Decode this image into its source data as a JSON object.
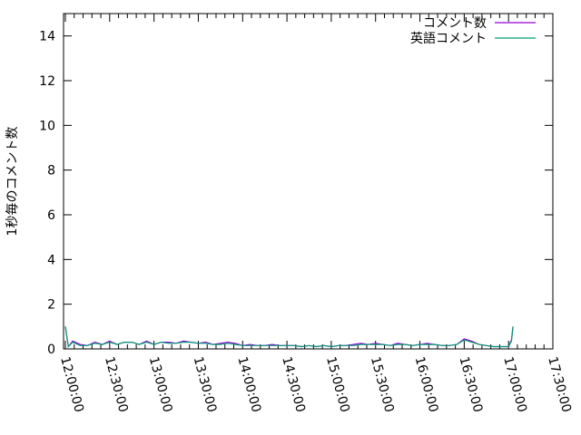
{
  "chart_data": {
    "type": "line",
    "title": "",
    "xlabel": "",
    "ylabel": "1秒毎のコメント数",
    "ylim": [
      0,
      15
    ],
    "yticks": [
      "0",
      "2",
      "4",
      "6",
      "8",
      "10",
      "12",
      "14"
    ],
    "xlim": [
      "12:00:00",
      "17:30:00"
    ],
    "xticks": [
      "12:00:00",
      "12:30:00",
      "13:00:00",
      "13:30:00",
      "14:00:00",
      "14:30:00",
      "15:00:00",
      "15:30:00",
      "16:00:00",
      "16:30:00",
      "17:00:00",
      "17:30:00"
    ],
    "grid": false,
    "legend_position": "top-right",
    "x": [
      "12:00:00",
      "12:02:00",
      "12:05:00",
      "12:10:00",
      "12:15:00",
      "12:20:00",
      "12:25:00",
      "12:30:00",
      "12:35:00",
      "12:40:00",
      "12:45:00",
      "12:50:00",
      "12:55:00",
      "13:00:00",
      "13:05:00",
      "13:10:00",
      "13:15:00",
      "13:20:00",
      "13:25:00",
      "13:30:00",
      "13:35:00",
      "13:40:00",
      "13:45:00",
      "13:50:00",
      "13:55:00",
      "14:00:00",
      "14:05:00",
      "14:10:00",
      "14:15:00",
      "14:20:00",
      "14:25:00",
      "14:30:00",
      "14:35:00",
      "14:40:00",
      "14:45:00",
      "14:50:00",
      "14:55:00",
      "15:00:00",
      "15:05:00",
      "15:10:00",
      "15:15:00",
      "15:20:00",
      "15:25:00",
      "15:30:00",
      "15:35:00",
      "15:40:00",
      "15:45:00",
      "15:50:00",
      "15:55:00",
      "16:00:00",
      "16:05:00",
      "16:10:00",
      "16:15:00",
      "16:20:00",
      "16:25:00",
      "16:30:00",
      "16:35:00",
      "16:40:00",
      "16:45:00",
      "16:50:00",
      "16:55:00",
      "17:00:00",
      "17:02:00",
      "17:03:00"
    ],
    "series": [
      {
        "name": "コメント数",
        "color": "#9400d3",
        "values": [
          1.0,
          0.1,
          0.35,
          0.2,
          0.15,
          0.3,
          0.2,
          0.35,
          0.2,
          0.3,
          0.3,
          0.2,
          0.35,
          0.2,
          0.3,
          0.3,
          0.25,
          0.35,
          0.3,
          0.25,
          0.3,
          0.2,
          0.25,
          0.3,
          0.25,
          0.15,
          0.2,
          0.15,
          0.15,
          0.2,
          0.15,
          0.15,
          0.15,
          0.1,
          0.15,
          0.1,
          0.15,
          0.1,
          0.15,
          0.15,
          0.2,
          0.25,
          0.2,
          0.25,
          0.2,
          0.15,
          0.25,
          0.2,
          0.15,
          0.2,
          0.25,
          0.2,
          0.15,
          0.15,
          0.2,
          0.45,
          0.35,
          0.2,
          0.15,
          0.1,
          0.1,
          0.1,
          0.4,
          1.0
        ]
      },
      {
        "name": "英語コメント",
        "color": "#009e73",
        "values": [
          1.0,
          0.1,
          0.3,
          0.15,
          0.15,
          0.25,
          0.2,
          0.3,
          0.2,
          0.3,
          0.3,
          0.2,
          0.3,
          0.2,
          0.3,
          0.25,
          0.25,
          0.3,
          0.3,
          0.25,
          0.25,
          0.2,
          0.2,
          0.25,
          0.2,
          0.15,
          0.15,
          0.15,
          0.15,
          0.15,
          0.15,
          0.15,
          0.15,
          0.1,
          0.15,
          0.1,
          0.15,
          0.1,
          0.15,
          0.15,
          0.15,
          0.2,
          0.2,
          0.2,
          0.2,
          0.15,
          0.2,
          0.2,
          0.15,
          0.2,
          0.2,
          0.2,
          0.15,
          0.15,
          0.2,
          0.4,
          0.3,
          0.2,
          0.15,
          0.1,
          0.1,
          0.1,
          0.35,
          1.0
        ]
      }
    ]
  }
}
